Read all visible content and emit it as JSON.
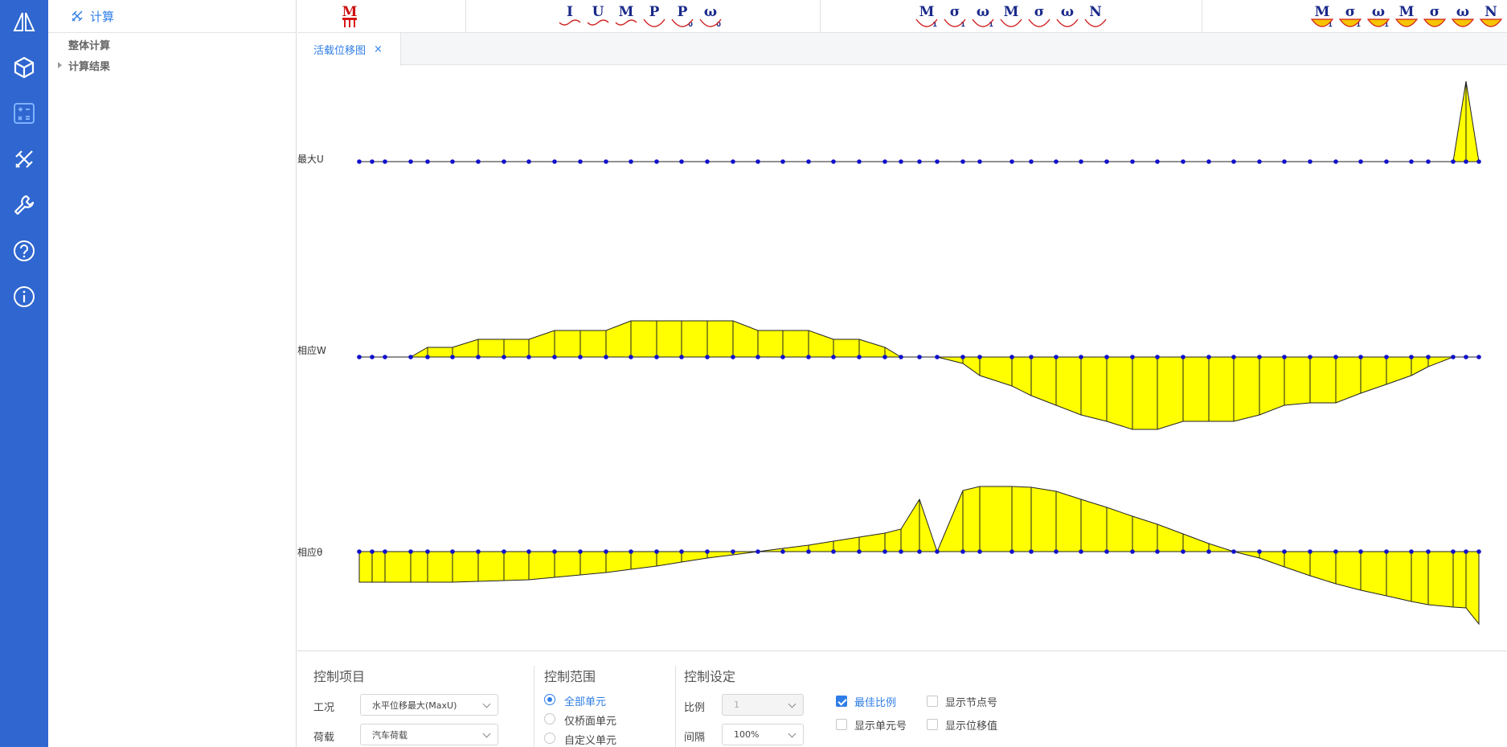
{
  "sidebar": {
    "icons": [
      "bridge-logo-icon",
      "cube-icon",
      "calculator-icon",
      "design-tools-icon",
      "wrench-icon",
      "help-icon",
      "info-icon"
    ]
  },
  "tree": {
    "header": "计算",
    "items": [
      {
        "label": "整体计算"
      },
      {
        "label": "计算结果"
      }
    ]
  },
  "toolbar": {
    "groups": [
      [
        {
          "t": "M",
          "s": "",
          "red": true
        }
      ],
      [
        {
          "t": "I",
          "s": ""
        },
        {
          "t": "U",
          "s": ""
        },
        {
          "t": "M",
          "s": ""
        },
        {
          "t": "P",
          "s": ""
        },
        {
          "t": "P",
          "s": "0"
        },
        {
          "t": "ω",
          "s": "0"
        }
      ],
      [
        {
          "t": "M",
          "s": "1"
        },
        {
          "t": "σ",
          "s": "1"
        },
        {
          "t": "ω",
          "s": "1"
        },
        {
          "t": "M",
          "s": ""
        },
        {
          "t": "σ",
          "s": ""
        },
        {
          "t": "ω",
          "s": ""
        },
        {
          "t": "N",
          "s": ""
        }
      ],
      [
        {
          "t": "M",
          "s": "1"
        },
        {
          "t": "σ",
          "s": "1"
        },
        {
          "t": "ω",
          "s": "1"
        },
        {
          "t": "M",
          "s": ""
        },
        {
          "t": "σ",
          "s": ""
        },
        {
          "t": "ω",
          "s": ""
        },
        {
          "t": "N",
          "s": ""
        }
      ]
    ]
  },
  "tabs": {
    "active": "活载位移图",
    "close": "×"
  },
  "plot": {
    "fill_color": "#ffff00",
    "node_color": "#1010cc",
    "rows": [
      {
        "label": "最大U"
      },
      {
        "label": "相应W"
      },
      {
        "label": "相应θ"
      }
    ]
  },
  "controls": {
    "project": {
      "title": "控制项目",
      "case_label": "工况",
      "case_value": "水平位移最大(MaxU)",
      "load_label": "荷载",
      "load_value": "汽车荷载"
    },
    "range": {
      "title": "控制范围",
      "options": [
        "全部单元",
        "仅桥面单元",
        "自定义单元"
      ],
      "selected": 0
    },
    "settings": {
      "title": "控制设定",
      "scale_label": "比例",
      "scale_value": "1",
      "interval_label": "间隔",
      "interval_value": "100%",
      "checks": [
        {
          "label": "最佳比例",
          "on": true
        },
        {
          "label": "显示节点号",
          "on": false
        },
        {
          "label": "显示单元号",
          "on": false
        },
        {
          "label": "显示位移值",
          "on": false
        }
      ]
    }
  }
}
